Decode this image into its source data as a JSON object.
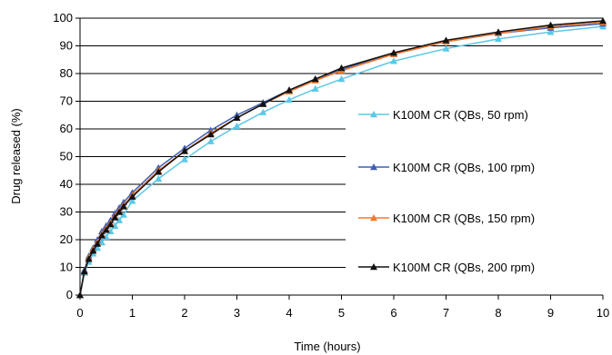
{
  "chart_data": {
    "type": "line",
    "title": "",
    "xlabel": "Time (hours)",
    "ylabel": "Drug released (%)",
    "xlim": [
      0,
      10
    ],
    "ylim": [
      0,
      100
    ],
    "x_ticks": [
      "0",
      "1",
      "2",
      "3",
      "4",
      "5",
      "6",
      "7",
      "8",
      "9",
      "10"
    ],
    "y_ticks": [
      "0",
      "10",
      "20",
      "30",
      "40",
      "50",
      "60",
      "70",
      "80",
      "90",
      "100"
    ],
    "grid": "horizontal",
    "legend_position": "right",
    "series": [
      {
        "name": "K100M CR (QBs, 50 rpm)",
        "color": "#5bc8e6",
        "marker": "triangle",
        "x": [
          0,
          0.083,
          0.167,
          0.25,
          0.333,
          0.417,
          0.5,
          0.583,
          0.667,
          0.75,
          0.833,
          1,
          1.5,
          2,
          2.5,
          3,
          3.5,
          4,
          4.5,
          5,
          6,
          7,
          8,
          9,
          10
        ],
        "y": [
          0,
          8,
          12,
          15,
          17,
          19,
          21,
          23,
          25,
          27,
          29,
          34,
          42,
          49,
          55.5,
          61,
          66,
          70.5,
          74.5,
          78,
          84.5,
          89,
          92.5,
          95,
          97
        ]
      },
      {
        "name": "K100M CR (QBs, 100 rpm)",
        "color": "#3f5fb5",
        "marker": "triangle",
        "x": [
          0,
          0.083,
          0.167,
          0.25,
          0.333,
          0.417,
          0.5,
          0.583,
          0.667,
          0.75,
          0.833,
          1,
          1.5,
          2,
          2.5,
          3,
          3.5,
          4,
          4.5,
          5,
          6,
          7,
          8,
          9,
          10
        ],
        "y": [
          0,
          9,
          14,
          17,
          20,
          23,
          25,
          27,
          29.5,
          31.5,
          33.5,
          37,
          46,
          53,
          59.5,
          65,
          69.5,
          74,
          78,
          81.5,
          87,
          91.5,
          94.5,
          96.5,
          98
        ]
      },
      {
        "name": "K100M CR (QBs, 150 rpm)",
        "color": "#f07a30",
        "marker": "triangle",
        "x": [
          0,
          0.083,
          0.167,
          0.25,
          0.333,
          0.417,
          0.5,
          0.583,
          0.667,
          0.75,
          0.833,
          1,
          1.5,
          2,
          2.5,
          3,
          3.5,
          4,
          4.5,
          5,
          6,
          7,
          8,
          9,
          10
        ],
        "y": [
          0,
          8.5,
          13.5,
          16.5,
          19,
          22,
          24,
          26,
          28.5,
          30.5,
          32.5,
          36,
          45,
          52,
          58.5,
          64,
          69,
          73.5,
          77.5,
          81,
          87,
          91.5,
          94.5,
          97,
          98.5
        ]
      },
      {
        "name": "K100M CR (QBs, 200 rpm)",
        "color": "#111111",
        "marker": "triangle",
        "x": [
          0,
          0.083,
          0.167,
          0.25,
          0.333,
          0.417,
          0.5,
          0.583,
          0.667,
          0.75,
          0.833,
          1,
          1.5,
          2,
          2.5,
          3,
          3.5,
          4,
          4.5,
          5,
          6,
          7,
          8,
          9,
          10
        ],
        "y": [
          0,
          8.5,
          13,
          16,
          18.5,
          21.5,
          23.5,
          25.5,
          28,
          30,
          32,
          35.5,
          44.5,
          52,
          58,
          64,
          69,
          74,
          78,
          82,
          87.5,
          92,
          95,
          97.5,
          99
        ]
      }
    ]
  }
}
